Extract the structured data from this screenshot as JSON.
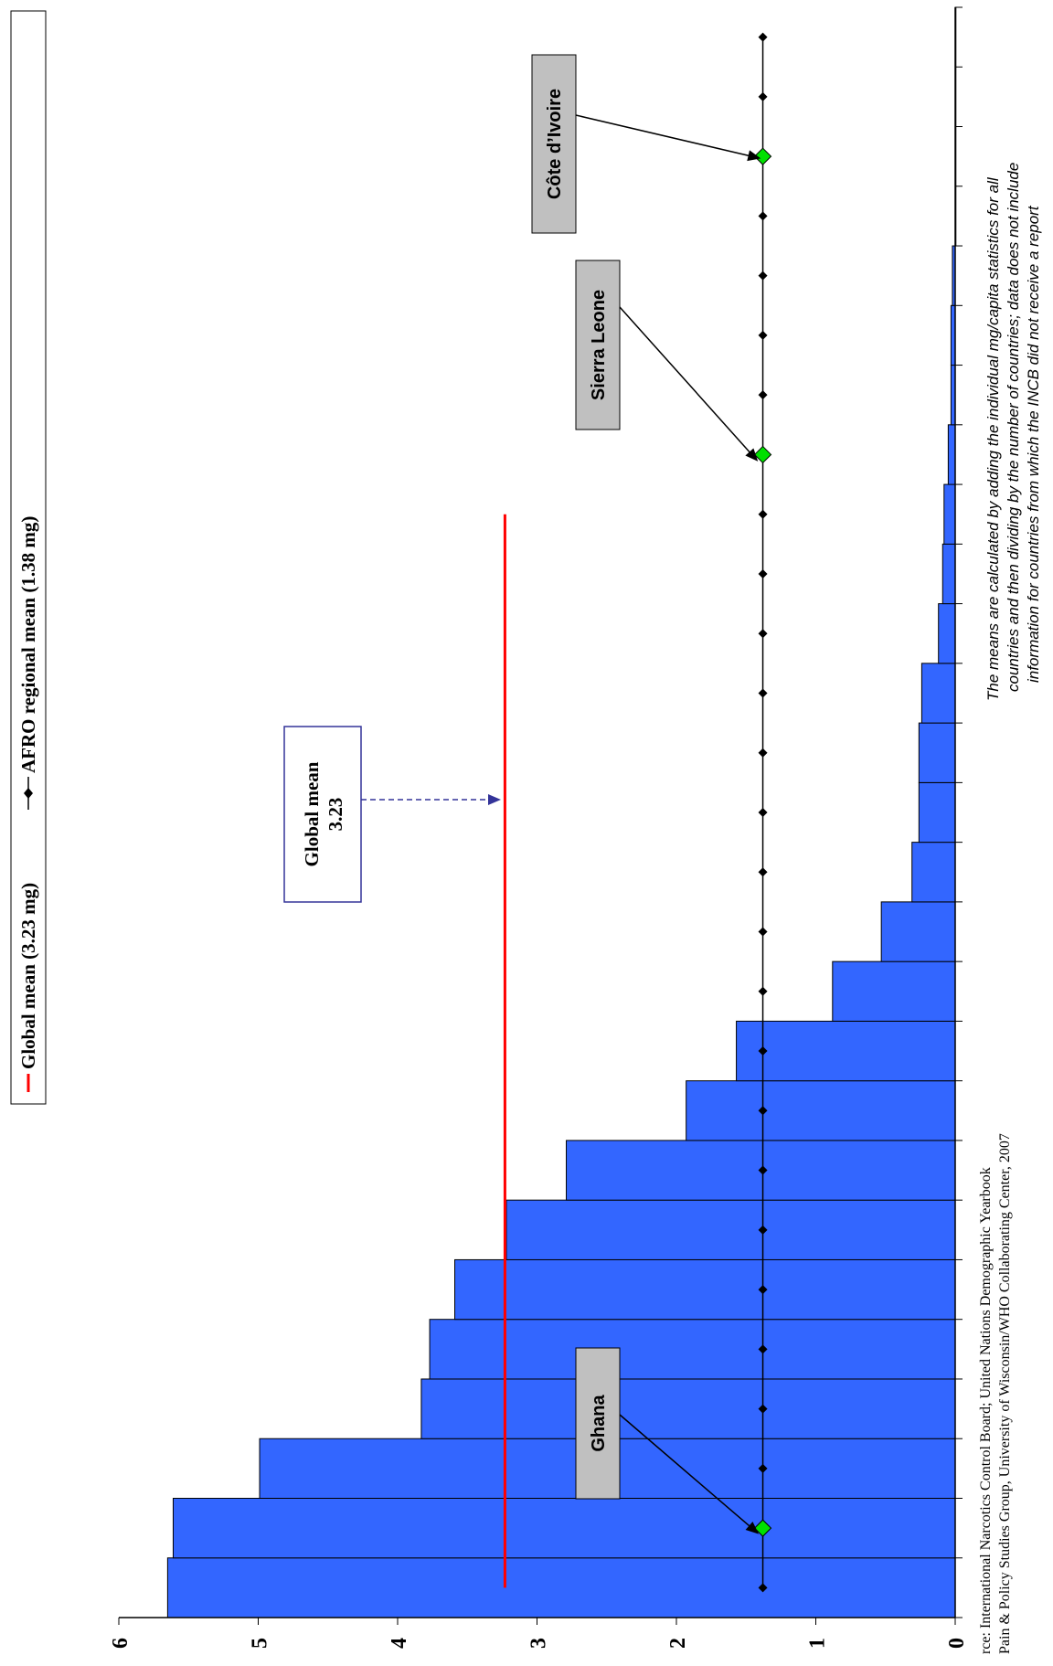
{
  "chart_data": {
    "type": "bar",
    "orientation": "rotated-90",
    "y_ticks": [
      "0",
      "1",
      "2",
      "3",
      "4",
      "5",
      "6"
    ],
    "ylim": [
      0,
      6
    ],
    "values": [
      5.65,
      5.61,
      4.99,
      3.83,
      3.77,
      3.59,
      3.22,
      2.79,
      1.93,
      1.57,
      0.88,
      0.53,
      0.31,
      0.26,
      0.26,
      0.24,
      0.12,
      0.09,
      0.08,
      0.05,
      0.03,
      0.03,
      0.02,
      0.0,
      0.0,
      0.0,
      0.0
    ],
    "series": [
      {
        "name": "Global mean (3.23 mg)",
        "value": 3.23,
        "color": "#ff0000"
      },
      {
        "name": "AFRO regional mean (1.38 mg)",
        "value": 1.38,
        "color": "#000000"
      }
    ],
    "bar_color": "#3366ff",
    "highlight_color": "#00e000",
    "afro_marker_range": [
      0,
      26
    ],
    "global_line_range": [
      0,
      18
    ],
    "highlights": [
      {
        "label": "Ghana",
        "index": 1
      },
      {
        "label": "Sierra Leone",
        "index": 19
      },
      {
        "label": "Côte d’Ivoire",
        "index": 24
      }
    ],
    "global_callout": {
      "line1": "Global mean",
      "line2": "3.23"
    },
    "source_line1": "rce: International Narcotics Control Board; United Nations Demographic Yearbook",
    "source_line2": "Pain & Policy Studies Group, University of Wisconsin/WHO Collaborating Center,  2007",
    "note_line1": "The means are calculated by adding the individual mg/capita statistics for all",
    "note_line2": "countries and then dividing by the number of countries; data does not include",
    "note_line3": "information for countries from which the INCB did not receive a report"
  }
}
